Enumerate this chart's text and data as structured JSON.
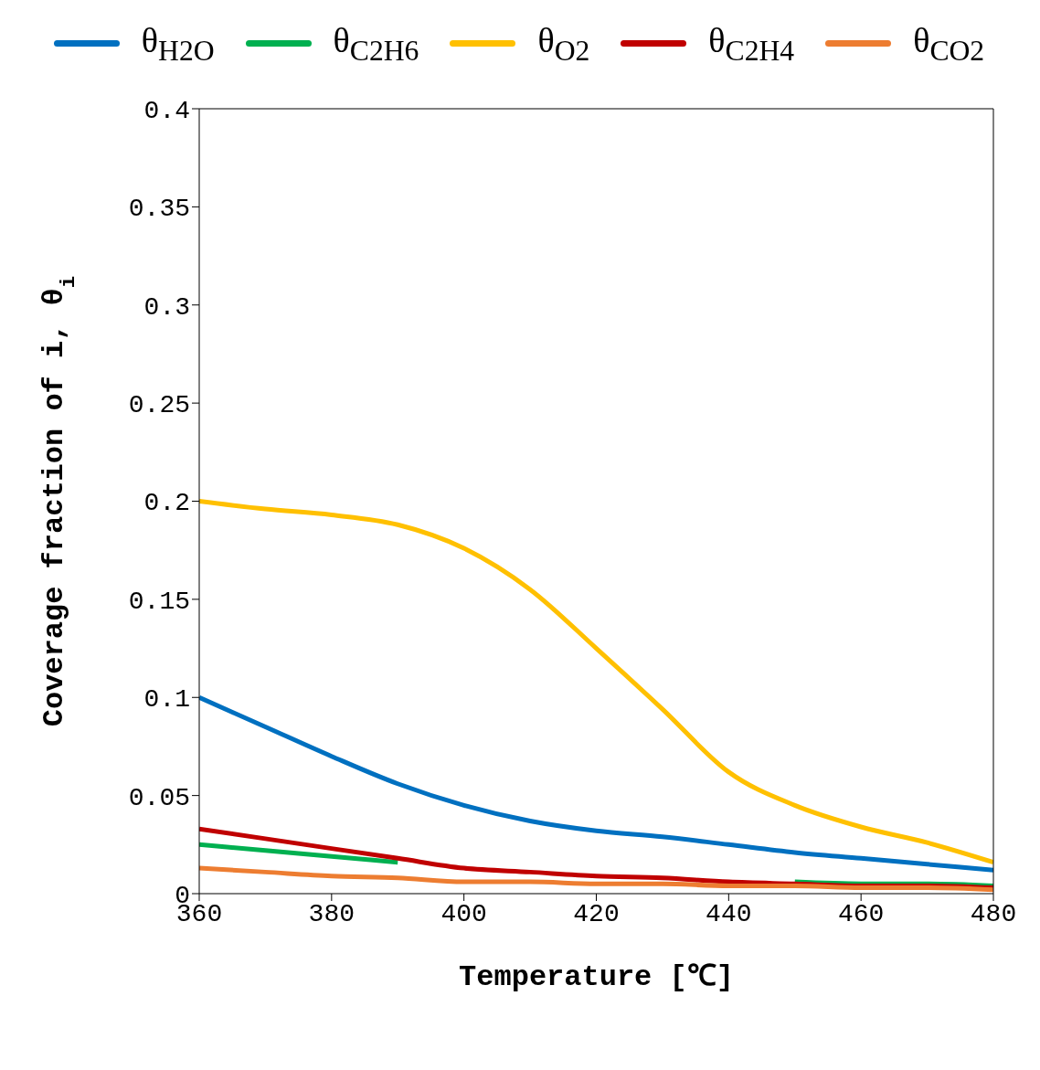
{
  "chart_data": {
    "type": "line",
    "xlabel": "Temperature [℃]",
    "ylabel": "Coverage fraction of i, θ$_{i}$",
    "x": [
      360,
      370,
      380,
      390,
      400,
      410,
      420,
      430,
      440,
      450,
      460,
      470,
      480
    ],
    "series": [
      {
        "name": "θ$_{H2O}$",
        "color": "#0070c0",
        "values": [
          0.1,
          0.085,
          0.07,
          0.056,
          0.045,
          0.037,
          0.032,
          0.029,
          0.025,
          0.021,
          0.018,
          0.015,
          0.012
        ]
      },
      {
        "name": "θ$_{C2H6}$",
        "color": "#00b050",
        "values": [
          0.025,
          0.022,
          0.019,
          0.016,
          null,
          null,
          null,
          null,
          null,
          0.006,
          0.005,
          0.005,
          0.004
        ]
      },
      {
        "name": "θ$_{O2}$",
        "color": "#ffc000",
        "values": [
          0.2,
          0.196,
          0.193,
          0.188,
          0.176,
          0.155,
          0.125,
          0.094,
          0.062,
          0.045,
          0.034,
          0.026,
          0.016
        ]
      },
      {
        "name": "θ$_{C2H4}$",
        "color": "#c00000",
        "values": [
          0.033,
          0.028,
          0.023,
          0.018,
          0.013,
          0.011,
          0.009,
          0.008,
          0.006,
          0.005,
          0.004,
          0.004,
          0.003
        ]
      },
      {
        "name": "θ$_{CO2}$",
        "color": "#ed7d31",
        "values": [
          0.013,
          0.011,
          0.009,
          0.008,
          0.006,
          0.006,
          0.005,
          0.005,
          0.004,
          0.004,
          0.003,
          0.003,
          0.002
        ]
      }
    ],
    "xlim": [
      360,
      480
    ],
    "xticks": [
      360,
      380,
      400,
      420,
      440,
      460,
      480
    ],
    "ylim": [
      0,
      0.4
    ],
    "yticks": [
      0,
      0.05,
      0.1,
      0.15,
      0.2,
      0.25,
      0.3,
      0.35,
      0.4
    ],
    "grid": false,
    "legend": "top",
    "line_style": "solid"
  }
}
